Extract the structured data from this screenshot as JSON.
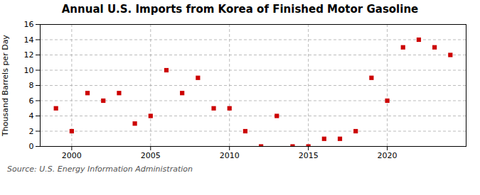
{
  "chart_data": {
    "type": "scatter",
    "title": "Annual U.S. Imports from Korea of Finished Motor Gasoline",
    "ylabel": "Thousand Barrels per Day",
    "annotation": "Source: U.S. Energy Information Administration",
    "x": [
      1999,
      2000,
      2001,
      2002,
      2003,
      2004,
      2005,
      2006,
      2007,
      2008,
      2009,
      2010,
      2011,
      2012,
      2013,
      2014,
      2015,
      2016,
      2017,
      2018,
      2019,
      2020,
      2021,
      2022,
      2023,
      2024
    ],
    "values": [
      5,
      2,
      7,
      6,
      7,
      3,
      4,
      10,
      7,
      9,
      5,
      5,
      2,
      0,
      4,
      0,
      0,
      1,
      1,
      2,
      9,
      6,
      13,
      14,
      13,
      12
    ],
    "xlim": [
      1998,
      2025
    ],
    "ylim": [
      0,
      16
    ],
    "xticks": [
      2000,
      2005,
      2010,
      2015,
      2020
    ],
    "yticks": [
      0,
      2,
      4,
      6,
      8,
      10,
      12,
      14,
      16
    ],
    "color": "#cc0000",
    "marker": "square",
    "grid": true
  }
}
